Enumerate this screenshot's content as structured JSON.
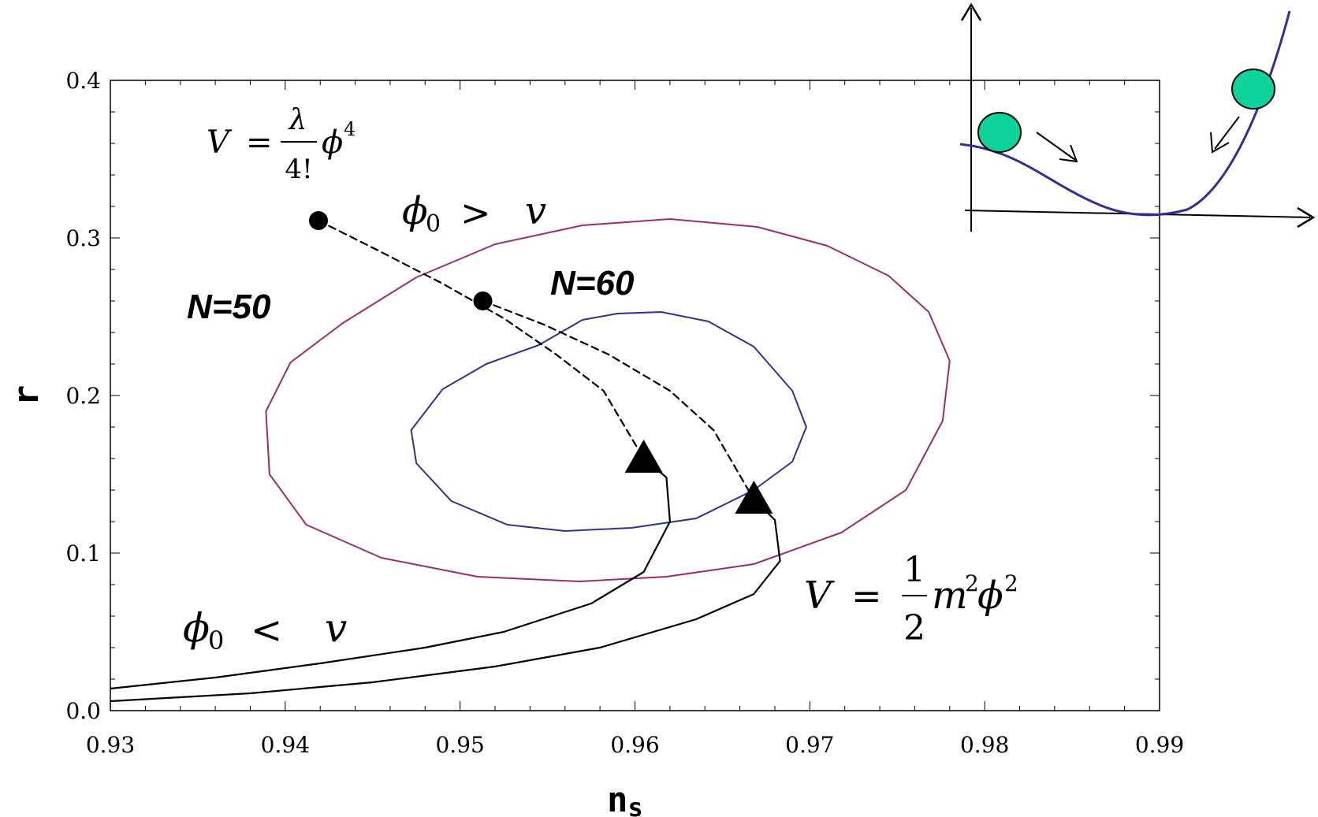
{
  "chart_data": {
    "type": "line",
    "xlabel": "n",
    "xlabel_sub": "s",
    "ylabel": "r",
    "xlim": [
      0.93,
      0.99
    ],
    "ylim": [
      0.0,
      0.4
    ],
    "x_ticks": [
      "0.93",
      "0.94",
      "0.95",
      "0.96",
      "0.97",
      "0.98",
      "0.99"
    ],
    "y_ticks": [
      "0.0",
      "0.1",
      "0.2",
      "0.3",
      "0.4"
    ],
    "grid": false,
    "annotations": {
      "n50": "N=50",
      "n60": "N=60",
      "phi4": {
        "v": "V",
        "eq": "=",
        "lambda": "λ",
        "fact": "4!",
        "phi": "ϕ",
        "exp": "4"
      },
      "phi2": {
        "v": "V",
        "eq": "=",
        "num": "1",
        "den": "2",
        "m": "m",
        "m_exp": "2",
        "phi": "ϕ",
        "phi_exp": "2"
      },
      "phi_gt": {
        "phi": "ϕ",
        "sub": "0",
        "op": ">",
        "v": "v"
      },
      "phi_lt": {
        "phi": "ϕ",
        "sub": "0",
        "op": "<",
        "v": "v"
      }
    },
    "series": [
      {
        "style": "ellipse",
        "color": "#9b2d6b",
        "points": [
          [
            0.9475,
            0.275
          ],
          [
            0.952,
            0.296
          ],
          [
            0.957,
            0.308
          ],
          [
            0.962,
            0.312
          ],
          [
            0.967,
            0.307
          ],
          [
            0.971,
            0.295
          ],
          [
            0.9745,
            0.276
          ],
          [
            0.9768,
            0.253
          ],
          [
            0.978,
            0.222
          ],
          [
            0.9776,
            0.184
          ],
          [
            0.9755,
            0.14
          ],
          [
            0.9718,
            0.113
          ],
          [
            0.9668,
            0.093
          ],
          [
            0.9618,
            0.085
          ],
          [
            0.9568,
            0.082
          ],
          [
            0.951,
            0.085
          ],
          [
            0.9455,
            0.097
          ],
          [
            0.9412,
            0.118
          ],
          [
            0.9391,
            0.15
          ],
          [
            0.9389,
            0.19
          ],
          [
            0.9403,
            0.221
          ],
          [
            0.9433,
            0.246
          ],
          [
            0.9475,
            0.275
          ]
        ]
      },
      {
        "style": "ellipse",
        "color": "#2e3192",
        "points": [
          [
            0.9545,
            0.232
          ],
          [
            0.957,
            0.248
          ],
          [
            0.959,
            0.252
          ],
          [
            0.9615,
            0.253
          ],
          [
            0.9642,
            0.247
          ],
          [
            0.9668,
            0.231
          ],
          [
            0.969,
            0.203
          ],
          [
            0.9698,
            0.18
          ],
          [
            0.969,
            0.158
          ],
          [
            0.9668,
            0.14
          ],
          [
            0.9635,
            0.122
          ],
          [
            0.9598,
            0.116
          ],
          [
            0.956,
            0.114
          ],
          [
            0.9527,
            0.118
          ],
          [
            0.9495,
            0.133
          ],
          [
            0.9475,
            0.157
          ],
          [
            0.9472,
            0.178
          ],
          [
            0.949,
            0.204
          ],
          [
            0.9515,
            0.22
          ],
          [
            0.9545,
            0.232
          ]
        ]
      },
      {
        "style": "dashed",
        "color": "#000000",
        "points": [
          [
            0.9419,
            0.311
          ],
          [
            0.9455,
            0.291
          ],
          [
            0.949,
            0.271
          ],
          [
            0.9525,
            0.249
          ],
          [
            0.9555,
            0.226
          ],
          [
            0.9582,
            0.203
          ],
          [
            0.9605,
            0.16
          ]
        ]
      },
      {
        "style": "dashed",
        "color": "#000000",
        "points": [
          [
            0.9513,
            0.26
          ],
          [
            0.9548,
            0.245
          ],
          [
            0.9585,
            0.226
          ],
          [
            0.962,
            0.203
          ],
          [
            0.9645,
            0.178
          ],
          [
            0.9668,
            0.134
          ]
        ]
      },
      {
        "style": "solid",
        "color": "#000000",
        "points": [
          [
            0.9605,
            0.16
          ],
          [
            0.9618,
            0.148
          ],
          [
            0.962,
            0.12
          ],
          [
            0.9605,
            0.088
          ],
          [
            0.9575,
            0.068
          ],
          [
            0.9525,
            0.05
          ],
          [
            0.948,
            0.04
          ],
          [
            0.942,
            0.03
          ],
          [
            0.936,
            0.021
          ],
          [
            0.93,
            0.014
          ]
        ]
      },
      {
        "style": "solid",
        "color": "#000000",
        "points": [
          [
            0.9668,
            0.134
          ],
          [
            0.968,
            0.121
          ],
          [
            0.9683,
            0.095
          ],
          [
            0.9668,
            0.074
          ],
          [
            0.9635,
            0.058
          ],
          [
            0.958,
            0.04
          ],
          [
            0.952,
            0.028
          ],
          [
            0.945,
            0.018
          ],
          [
            0.938,
            0.011
          ],
          [
            0.93,
            0.006
          ]
        ]
      }
    ],
    "markers": [
      {
        "shape": "circle",
        "x": 0.9419,
        "y": 0.311
      },
      {
        "shape": "circle",
        "x": 0.9513,
        "y": 0.26
      },
      {
        "shape": "triangle",
        "x": 0.9605,
        "y": 0.16
      },
      {
        "shape": "triangle",
        "x": 0.9668,
        "y": 0.134
      }
    ],
    "inset": {
      "curve_color": "#2e3192",
      "ball_color": "#0bd39a"
    }
  }
}
